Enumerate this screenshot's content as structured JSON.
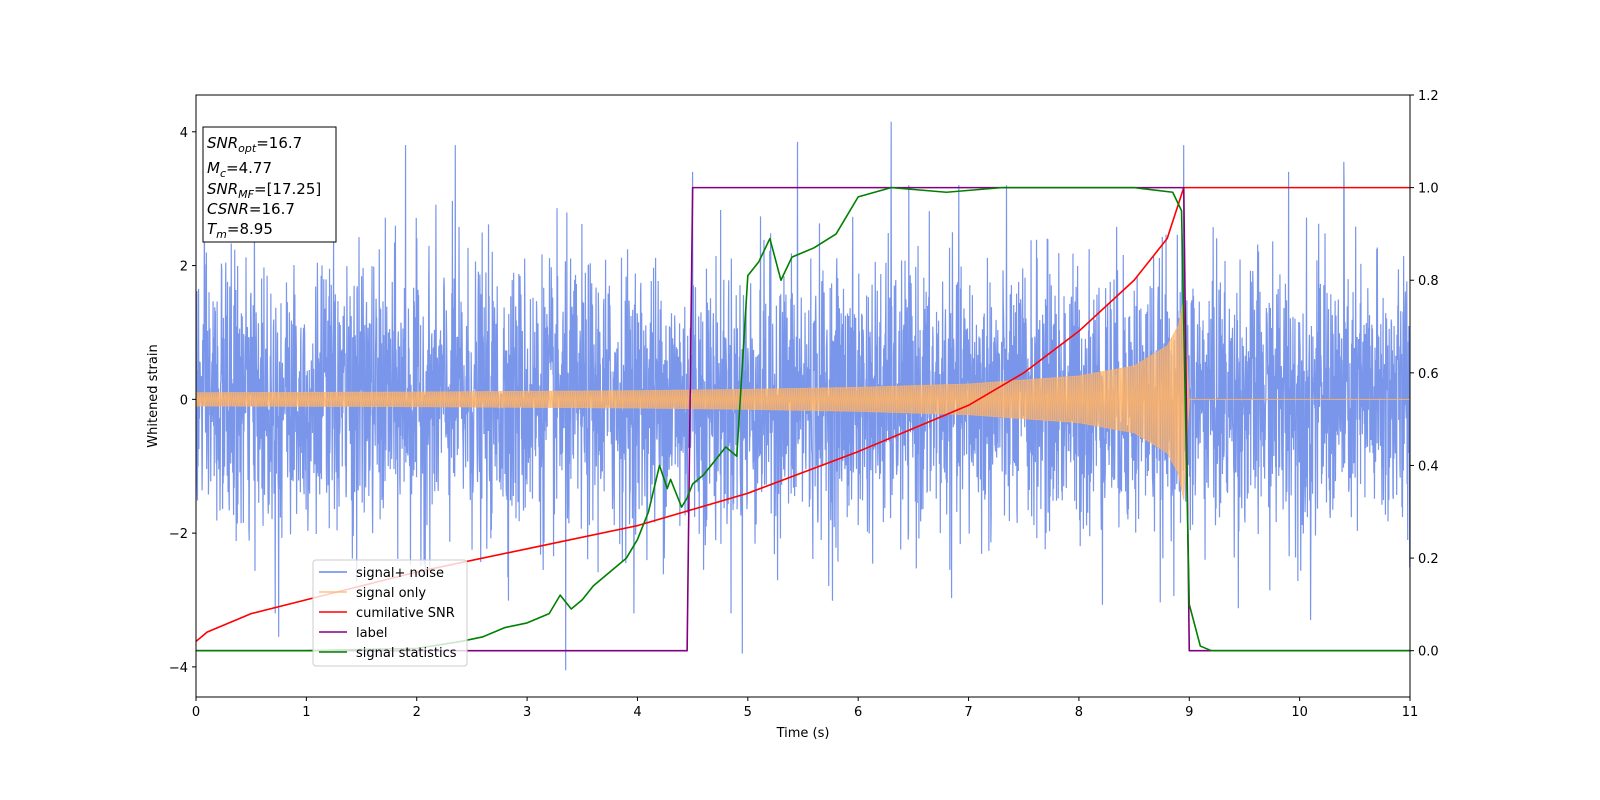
{
  "chart_data": {
    "type": "line",
    "xlabel": "Time (s)",
    "ylabel": "Whitened strain",
    "xlim": [
      0,
      11
    ],
    "ylim_left": [
      -4.45,
      4.55
    ],
    "ylim_right": [
      -0.1,
      1.2
    ],
    "x_ticks": [
      0,
      1,
      2,
      3,
      4,
      5,
      6,
      7,
      8,
      9,
      10,
      11
    ],
    "y_ticks_left": [
      -4,
      -2,
      0,
      2,
      4
    ],
    "y_ticks_right": [
      0.0,
      0.2,
      0.4,
      0.6,
      0.8,
      1.0,
      1.2
    ],
    "y_tick_labels_right": [
      "0.0",
      "0.2",
      "0.4",
      "0.6",
      "0.8",
      "1.0",
      "1.2"
    ],
    "legend_location": "lower-left",
    "grid": false,
    "info_box": [
      {
        "base": "SNR",
        "sub": "opt",
        "value": "=16.7"
      },
      {
        "base": "M",
        "sub": "c",
        "value": "=4.77"
      },
      {
        "base": "SNR",
        "sub": "MF",
        "value": "=[17.25]"
      },
      {
        "base": "CSNR",
        "sub": "",
        "value": "=16.7"
      },
      {
        "base": "T",
        "sub": "m",
        "value": "=8.95"
      }
    ],
    "series": [
      {
        "name": "signal+ noise",
        "axis": "left",
        "color": "#4169e1",
        "description_type": "noise",
        "amplitude_sigma": 1.0,
        "x_range": [
          0,
          11
        ],
        "peaks": [
          [
            0.75,
            -3.55
          ],
          [
            1.9,
            3.8
          ],
          [
            2.35,
            3.8
          ],
          [
            3.35,
            -4.05
          ],
          [
            4.5,
            3.4
          ],
          [
            4.95,
            -3.8
          ],
          [
            5.45,
            3.85
          ],
          [
            6.3,
            4.15
          ],
          [
            8.95,
            3.8
          ],
          [
            9.9,
            3.4
          ],
          [
            10.1,
            4.15
          ],
          [
            10.4,
            3.55
          ],
          [
            10.1,
            -3.3
          ]
        ]
      },
      {
        "name": "signal only",
        "axis": "left",
        "color": "#ffb366",
        "description_type": "chirp",
        "amplitude_points": [
          [
            0,
            0.1
          ],
          [
            2,
            0.11
          ],
          [
            4,
            0.13
          ],
          [
            5,
            0.15
          ],
          [
            6,
            0.18
          ],
          [
            7,
            0.23
          ],
          [
            8,
            0.35
          ],
          [
            8.5,
            0.5
          ],
          [
            8.8,
            0.8
          ],
          [
            8.9,
            1.1
          ],
          [
            8.95,
            1.5
          ],
          [
            9.0,
            0.0
          ],
          [
            11,
            0.0
          ]
        ]
      },
      {
        "name": "cumilative SNR",
        "axis": "right",
        "color": "#ff0000",
        "x": [
          0,
          0.1,
          0.5,
          1,
          2,
          3,
          4,
          5,
          6,
          7,
          7.5,
          8,
          8.5,
          8.8,
          8.95,
          9.0,
          11
        ],
        "y": [
          0.02,
          0.04,
          0.08,
          0.11,
          0.17,
          0.22,
          0.27,
          0.34,
          0.43,
          0.53,
          0.6,
          0.69,
          0.8,
          0.89,
          1.0,
          1.0,
          1.0
        ]
      },
      {
        "name": "label",
        "axis": "right",
        "color": "#800080",
        "x": [
          0,
          4.45,
          4.5,
          8.95,
          9.0,
          11
        ],
        "y": [
          0,
          0,
          1,
          1,
          0,
          0
        ]
      },
      {
        "name": "signal statistics",
        "axis": "right",
        "color": "#008000",
        "x": [
          0,
          1,
          2,
          2.4,
          2.6,
          2.8,
          3.0,
          3.2,
          3.3,
          3.4,
          3.5,
          3.6,
          3.7,
          3.8,
          3.9,
          4.0,
          4.1,
          4.2,
          4.27,
          4.3,
          4.4,
          4.45,
          4.5,
          4.6,
          4.8,
          4.9,
          5.0,
          5.1,
          5.2,
          5.3,
          5.4,
          5.5,
          5.6,
          5.8,
          6.0,
          6.3,
          6.8,
          7.3,
          8.0,
          8.5,
          8.85,
          8.93,
          9.0,
          9.1,
          9.2,
          11
        ],
        "y": [
          0,
          0,
          0.005,
          0.02,
          0.03,
          0.05,
          0.06,
          0.08,
          0.12,
          0.09,
          0.11,
          0.14,
          0.16,
          0.18,
          0.2,
          0.24,
          0.3,
          0.4,
          0.35,
          0.37,
          0.31,
          0.33,
          0.36,
          0.38,
          0.44,
          0.42,
          0.81,
          0.84,
          0.89,
          0.8,
          0.85,
          0.86,
          0.87,
          0.9,
          0.98,
          1.0,
          0.99,
          1.0,
          1.0,
          1.0,
          0.99,
          0.95,
          0.1,
          0.01,
          0.0,
          0.0
        ]
      }
    ]
  }
}
